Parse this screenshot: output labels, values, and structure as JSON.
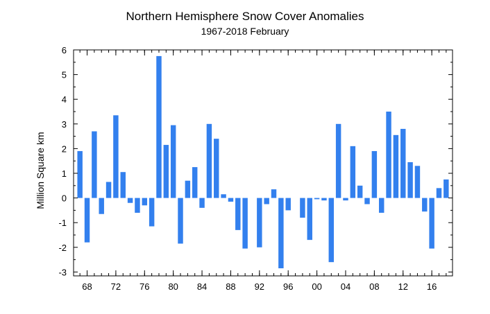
{
  "chart_data": {
    "type": "bar",
    "title": "Northern Hemisphere Snow Cover Anomalies",
    "subtitle": "1967-2018 February",
    "xlabel": "",
    "ylabel": "Million Square km",
    "ylim": [
      -3.2,
      6.0
    ],
    "yticks": [
      6,
      5,
      4,
      3,
      2,
      1,
      0,
      -1,
      -2,
      -3
    ],
    "xticks": [
      "68",
      "72",
      "76",
      "80",
      "84",
      "88",
      "92",
      "96",
      "00",
      "04",
      "08",
      "12",
      "16"
    ],
    "x": [
      1967,
      1968,
      1969,
      1970,
      1971,
      1972,
      1973,
      1974,
      1975,
      1976,
      1977,
      1978,
      1979,
      1980,
      1981,
      1982,
      1983,
      1984,
      1985,
      1986,
      1987,
      1988,
      1989,
      1990,
      1991,
      1992,
      1993,
      1994,
      1995,
      1996,
      1997,
      1998,
      1999,
      2000,
      2001,
      2002,
      2003,
      2004,
      2005,
      2006,
      2007,
      2008,
      2009,
      2010,
      2011,
      2012,
      2013,
      2014,
      2015,
      2016,
      2017,
      2018
    ],
    "values": [
      1.9,
      -1.8,
      2.7,
      -0.65,
      0.65,
      3.35,
      1.05,
      -0.2,
      -0.6,
      -0.3,
      -1.15,
      5.75,
      2.15,
      2.95,
      -1.85,
      0.7,
      1.25,
      -0.4,
      3.0,
      2.4,
      0.15,
      -0.15,
      -1.3,
      -2.05,
      0.0,
      -2.0,
      -0.25,
      0.35,
      -2.85,
      -0.5,
      0.0,
      -0.8,
      -1.7,
      -0.05,
      -0.1,
      -2.6,
      3.0,
      -0.1,
      2.1,
      0.5,
      -0.25,
      1.9,
      -0.6,
      3.5,
      2.55,
      2.8,
      1.45,
      1.3,
      -0.55,
      -2.05,
      0.4,
      0.75
    ],
    "bar_color": "#3380ee",
    "grid": false
  }
}
